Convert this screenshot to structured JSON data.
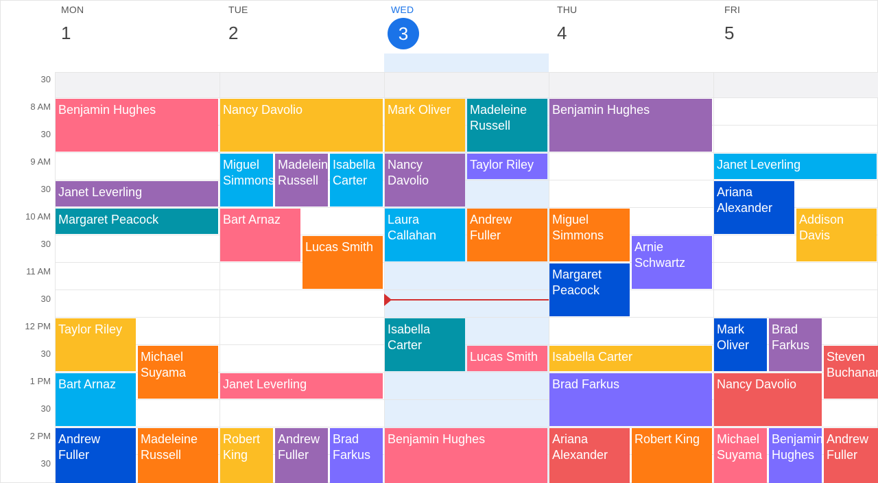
{
  "days": [
    {
      "name": "MON",
      "num": "1"
    },
    {
      "name": "TUE",
      "num": "2"
    },
    {
      "name": "WED",
      "num": "3"
    },
    {
      "name": "THU",
      "num": "4"
    },
    {
      "name": "FRI",
      "num": "5"
    }
  ],
  "time_labels": [
    "30",
    "8 AM",
    "30",
    "9 AM",
    "30",
    "10 AM",
    "30",
    "11 AM",
    "30",
    "12 PM",
    "30",
    "1 PM",
    "30",
    "2 PM",
    "30"
  ],
  "events": {
    "mon": [
      "Benjamin Hughes",
      "Janet Leverling",
      "Margaret Peacock",
      "Taylor Riley",
      "Michael Suyama",
      "Bart Arnaz",
      "Andrew Fuller",
      "Madeleine Russell"
    ],
    "tue": [
      "Nancy Davolio",
      "Miguel Simmons",
      "Madeleine Russell",
      "Isabella Carter",
      "Bart Arnaz",
      "Lucas Smith",
      "Janet Leverling",
      "Robert King",
      "Andrew Fuller",
      "Brad Farkus"
    ],
    "wed": [
      "Mark Oliver",
      "Madeleine Russell",
      "Nancy Davolio",
      "Taylor Riley",
      "Laura Callahan",
      "Andrew Fuller",
      "Isabella Carter",
      "Lucas Smith",
      "Benjamin Hughes"
    ],
    "thu": [
      "Benjamin Hughes",
      "Miguel Simmons",
      "Arnie Schwartz",
      "Margaret Peacock",
      "Isabella Carter",
      "Brad Farkus",
      "Ariana Alexander",
      "Robert King"
    ],
    "fri": [
      "Janet Leverling",
      "Ariana Alexander",
      "Addison Davis",
      "Mark Oliver",
      "Brad Farkus",
      "Steven Buchanan",
      "Nancy Davolio",
      "Michael Suyama",
      "Benjamin Hughes",
      "Andrew Fuller"
    ]
  },
  "colors": {
    "pink": "#ff6b85",
    "amber": "#fcbd24",
    "purple": "#9967b3",
    "teal": "#0394a7",
    "skyblue": "#00aeef",
    "blue": "#0052d6",
    "orange": "#ff7b12",
    "violet": "#7b6cff",
    "red": "#f05a5a",
    "today_accent": "#1a73e8",
    "now_indicator": "#d32f2f"
  }
}
